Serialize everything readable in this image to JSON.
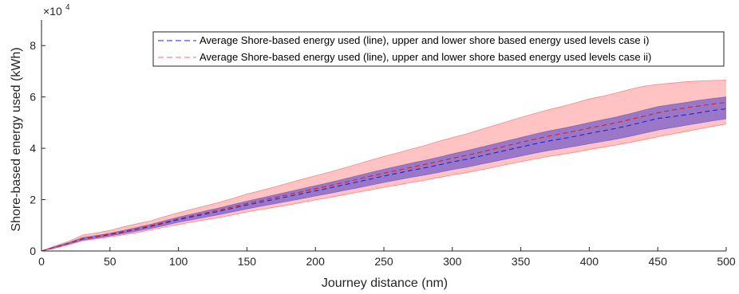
{
  "chart_data": {
    "type": "area",
    "xlabel": "Journey distance (nm)",
    "ylabel": "Shore-based energy used (kWh)",
    "exponent_label": "×10",
    "exponent_power": "4",
    "xlim": [
      0,
      500
    ],
    "ylim": [
      0,
      90000
    ],
    "xticks": [
      0,
      50,
      100,
      150,
      200,
      250,
      300,
      350,
      400,
      450,
      500
    ],
    "yticks": [
      0,
      20000,
      40000,
      60000,
      80000
    ],
    "ytick_labels": [
      "0",
      "2",
      "4",
      "6",
      "8"
    ],
    "x": [
      0,
      10,
      20,
      30,
      40,
      50,
      60,
      70,
      80,
      90,
      100,
      110,
      120,
      130,
      140,
      150,
      160,
      170,
      180,
      190,
      200,
      210,
      220,
      230,
      240,
      250,
      260,
      270,
      280,
      290,
      300,
      310,
      320,
      330,
      340,
      350,
      360,
      370,
      380,
      390,
      400,
      410,
      420,
      430,
      440,
      450,
      460,
      470,
      480,
      490,
      500
    ],
    "grid": false,
    "legend_position": "top-right",
    "series": [
      {
        "name": "Average Shore-based energy used (line), upper and lower shore based energy used levels case i)",
        "line_color": "#2020d0",
        "fill_color": "#7a5fc8",
        "mean": [
          0,
          1500,
          3000,
          4700,
          5500,
          6400,
          7400,
          8500,
          9600,
          10900,
          12200,
          13300,
          14400,
          15500,
          16700,
          17900,
          19000,
          20100,
          21200,
          22300,
          23400,
          24500,
          25700,
          26800,
          28000,
          29200,
          30300,
          31400,
          32400,
          33500,
          34700,
          35700,
          36900,
          38100,
          39300,
          40500,
          41700,
          42800,
          43700,
          44700,
          45800,
          46800,
          47800,
          49000,
          50300,
          51600,
          52300,
          53000,
          53800,
          54700,
          55400
        ],
        "upper": [
          0,
          1700,
          3300,
          5200,
          6000,
          6900,
          8000,
          9200,
          10400,
          11800,
          13200,
          14400,
          15600,
          16800,
          18100,
          19400,
          20600,
          21800,
          23000,
          24200,
          25400,
          26600,
          27900,
          29200,
          30500,
          31800,
          33000,
          34200,
          35300,
          36500,
          37800,
          39000,
          40300,
          41600,
          42900,
          44200,
          45500,
          46700,
          47700,
          48800,
          50000,
          51100,
          52200,
          53500,
          54900,
          56200,
          57000,
          57800,
          58700,
          59400,
          60000
        ],
        "lower": [
          0,
          1300,
          2700,
          4200,
          5000,
          5900,
          6800,
          7800,
          8800,
          10000,
          11200,
          12200,
          13200,
          14200,
          15300,
          16400,
          17400,
          18400,
          19400,
          20400,
          21400,
          22400,
          23500,
          24500,
          25600,
          26700,
          27700,
          28700,
          29600,
          30600,
          31700,
          32600,
          33700,
          34800,
          35900,
          37000,
          38100,
          39100,
          39900,
          40800,
          41800,
          42700,
          43600,
          44700,
          45900,
          47100,
          48000,
          48900,
          49800,
          50700,
          51500
        ]
      },
      {
        "name": "Average Shore-based energy used (line), upper and lower shore based energy used levels case ii)",
        "line_color": "#d62020",
        "fill_color": "#ff7b7b",
        "mean": [
          0,
          1500,
          3000,
          4800,
          5600,
          6600,
          7600,
          8700,
          9900,
          11200,
          12500,
          13700,
          14800,
          16000,
          17200,
          18500,
          19600,
          20800,
          21900,
          23100,
          24300,
          25400,
          26600,
          27800,
          29100,
          30300,
          31400,
          32600,
          33700,
          34900,
          36100,
          37200,
          38400,
          39700,
          41000,
          42300,
          43500,
          44700,
          45700,
          46700,
          47900,
          48900,
          50000,
          51200,
          52500,
          53800,
          54800,
          55700,
          56500,
          57200,
          57900
        ],
        "upper": [
          0,
          2000,
          3800,
          6200,
          7000,
          8000,
          9400,
          10600,
          11800,
          13400,
          14900,
          16300,
          17600,
          19000,
          20500,
          22200,
          23500,
          24900,
          26400,
          27900,
          29300,
          30700,
          32200,
          33700,
          35300,
          36800,
          38200,
          39700,
          41100,
          42700,
          44200,
          45600,
          47200,
          48800,
          50400,
          52000,
          53500,
          55000,
          56300,
          57700,
          59200,
          60300,
          61600,
          63000,
          64200,
          64900,
          65400,
          65900,
          66200,
          66400,
          66500
        ],
        "lower": [
          0,
          1100,
          2400,
          4000,
          4700,
          5500,
          6300,
          7200,
          8200,
          9300,
          10300,
          11300,
          12200,
          13100,
          14100,
          15200,
          16100,
          17000,
          17900,
          18900,
          19900,
          20800,
          21800,
          22800,
          23800,
          24800,
          25700,
          26700,
          27600,
          28600,
          29600,
          30500,
          31500,
          32600,
          33700,
          34800,
          35800,
          36800,
          37600,
          38500,
          39500,
          40400,
          41300,
          42300,
          43400,
          44500,
          45500,
          46500,
          47500,
          48500,
          49500
        ]
      }
    ]
  }
}
